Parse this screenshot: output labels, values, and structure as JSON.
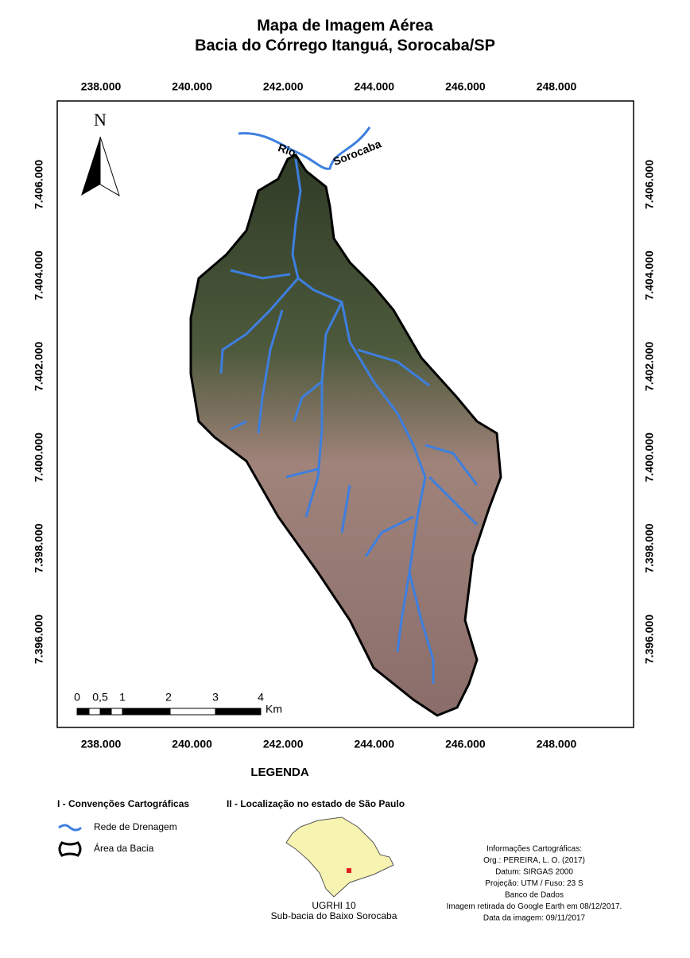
{
  "header": {
    "title": [
      "Mapa de Imagem Aérea",
      "Bacia do Córrego Itanguá, Sorocaba/SP"
    ]
  },
  "map": {
    "x_labels": [
      "238.000",
      "240.000",
      "242.000",
      "244.000",
      "246.000",
      "248.000"
    ],
    "y_labels": [
      "7.406.000",
      "7.404.000",
      "7.402.000",
      "7.400.000",
      "7.398.000",
      "7.396.000"
    ],
    "north": "N",
    "river_labels": [
      "Rio",
      "Sorocaba"
    ],
    "scale": {
      "labels": [
        "0",
        "0,5",
        "1",
        "2",
        "3",
        "4"
      ],
      "unit": "Km"
    }
  },
  "legend": {
    "title": "LEGENDA",
    "section_1": {
      "title": "I - Convenções Cartográficas",
      "items": [
        "Rede de Drenagem",
        "Área da Bacia"
      ]
    },
    "section_2": {
      "title": "II - Localização no estado de São Paulo",
      "caption": [
        "UGRHI 10",
        "Sub-bacia do Baixo Sorocaba"
      ]
    },
    "info": [
      "Informações Cartográficas:",
      "Org.: PEREIRA, L. O. (2017)",
      "Datum: SIRGAS 2000",
      "Projeção: UTM / Fuso: 23 S",
      "Banco de Dados",
      "Imagem retirada do Google Earth em 08/12/2017.",
      "Data da imagem: 09/11/2017"
    ]
  }
}
